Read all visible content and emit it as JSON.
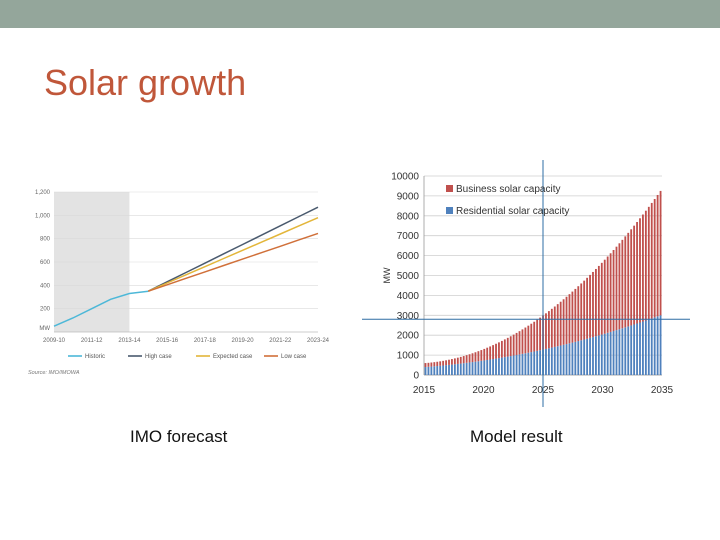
{
  "slide": {
    "title": "Solar growth",
    "caption_left": "IMO forecast",
    "caption_right": "Model result",
    "colors": {
      "top_bar": "#94a69b",
      "title": "#c0573a"
    }
  },
  "chart_data": [
    {
      "type": "line",
      "name": "imo-forecast",
      "title": "",
      "xlabel": "",
      "ylabel": "",
      "y_unit": "MW",
      "categories": [
        "2009-10",
        "2010-11",
        "2011-12",
        "2012-13",
        "2013-14",
        "2014-15",
        "2015-16",
        "2016-17",
        "2017-18",
        "2018-19",
        "2019-20",
        "2020-21",
        "2021-22",
        "2022-23",
        "2023-24"
      ],
      "tick_labels": [
        "2009-10",
        "2011-12",
        "2013-14",
        "2015-16",
        "2017-18",
        "2019-20",
        "2021-22",
        "2023-24"
      ],
      "ylim": [
        0,
        1200
      ],
      "yticks": [
        200,
        400,
        600,
        800,
        1000,
        1200
      ],
      "ytick_labels": [
        "200",
        "400",
        "600",
        "800",
        "1,000",
        "1,200"
      ],
      "shaded_region": [
        "2009-10",
        "2013-14"
      ],
      "series": [
        {
          "name": "Historic",
          "color": "#4db8d8",
          "values": [
            50,
            120,
            200,
            280,
            330,
            350,
            null,
            null,
            null,
            null,
            null,
            null,
            null,
            null,
            null
          ]
        },
        {
          "name": "High case",
          "color": "#4a5a6e",
          "values": [
            null,
            null,
            null,
            null,
            null,
            350,
            430,
            510,
            590,
            670,
            750,
            830,
            910,
            990,
            1070
          ]
        },
        {
          "name": "Expected case",
          "color": "#e3b63a",
          "values": [
            null,
            null,
            null,
            null,
            null,
            350,
            420,
            490,
            560,
            630,
            700,
            770,
            840,
            910,
            980
          ]
        },
        {
          "name": "Low case",
          "color": "#d0703a",
          "values": [
            null,
            null,
            null,
            null,
            null,
            350,
            405,
            460,
            515,
            570,
            625,
            680,
            735,
            790,
            845
          ]
        }
      ],
      "source_note": "Source: IMO/IMOWA"
    },
    {
      "type": "bar",
      "stacked": true,
      "name": "model-result",
      "title": "",
      "xlabel": "",
      "ylabel": "MW",
      "x_start": 2015,
      "x_end": 2035,
      "bars_per_year": 4,
      "xticks": [
        "2015",
        "2020",
        "2025",
        "2030",
        "2035"
      ],
      "ylim": [
        0,
        10000
      ],
      "yticks": [
        "0",
        "1000",
        "2000",
        "3000",
        "4000",
        "5000",
        "6000",
        "7000",
        "8000",
        "9000",
        "10000"
      ],
      "series": [
        {
          "name": "Business solar capacity",
          "color": "#c0504d",
          "start": 200,
          "end": 6250
        },
        {
          "name": "Residential solar capacity",
          "color": "#4f81bd",
          "start": 400,
          "end": 3000
        }
      ],
      "crosshair": {
        "x": 2025,
        "y": 2800
      }
    }
  ]
}
